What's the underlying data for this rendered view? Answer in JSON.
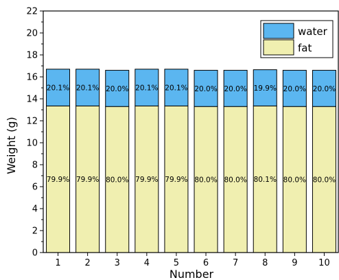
{
  "chart_data": {
    "type": "bar",
    "stacked": true,
    "xlabel": "Number",
    "ylabel": "Weight (g)",
    "categories": [
      "1",
      "2",
      "3",
      "4",
      "5",
      "6",
      "7",
      "8",
      "9",
      "10"
    ],
    "ylim": [
      0,
      22
    ],
    "yticks": [
      0,
      2,
      4,
      6,
      8,
      10,
      12,
      14,
      16,
      18,
      20,
      22
    ],
    "legend_position": "top-right",
    "series": [
      {
        "name": "fat",
        "color": "#f0efb0",
        "values": [
          13.35,
          13.35,
          13.3,
          13.35,
          13.35,
          13.3,
          13.3,
          13.35,
          13.3,
          13.3
        ],
        "labels": [
          "79.9%",
          "79.9%",
          "80.0%",
          "79.9%",
          "79.9%",
          "80.0%",
          "80.0%",
          "80.1%",
          "80.0%",
          "80.0%"
        ]
      },
      {
        "name": "water",
        "color": "#5bb6f0",
        "values": [
          3.35,
          3.35,
          3.3,
          3.35,
          3.35,
          3.3,
          3.3,
          3.3,
          3.3,
          3.3
        ],
        "labels": [
          "20.1%",
          "20.1%",
          "20.0%",
          "20.1%",
          "20.1%",
          "20.0%",
          "20.0%",
          "19.9%",
          "20.0%",
          "20.0%"
        ]
      }
    ]
  }
}
